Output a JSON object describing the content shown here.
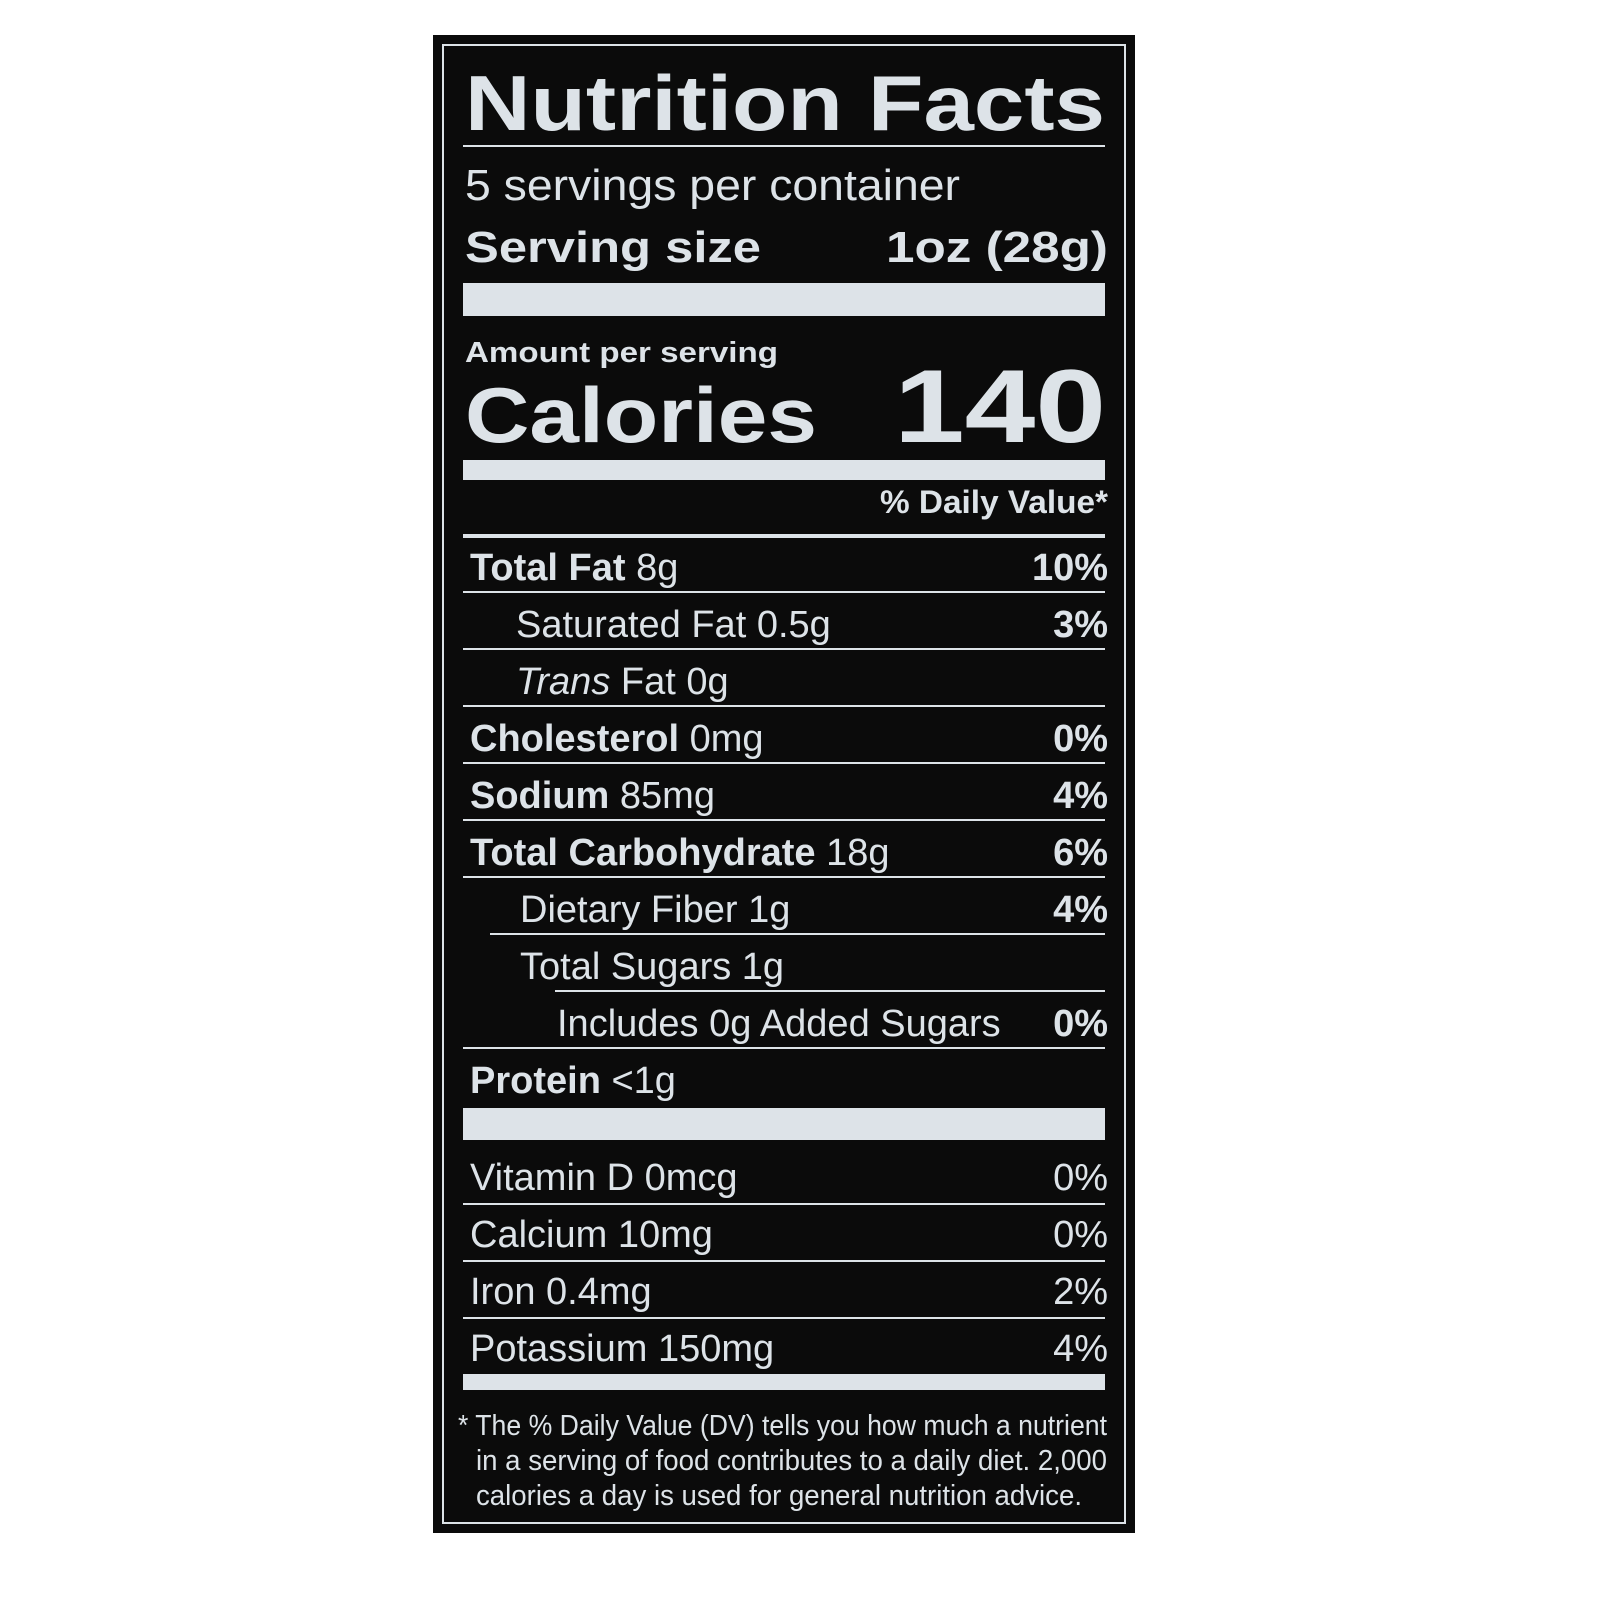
{
  "label": {
    "title": "Nutrition Facts",
    "servings": "5 servings per container",
    "serving_size": {
      "label": "Serving size",
      "value": "1oz (28g)"
    },
    "amount_per_serving": "Amount per serving",
    "calories": {
      "label": "Calories",
      "value": "140"
    },
    "dv_header": "% Daily Value*",
    "nutrients": [
      {
        "name": "Total Fat",
        "amount": "8g",
        "dv": "10%"
      },
      {
        "name": "Saturated Fat",
        "amount": "0.5g",
        "dv": "3%"
      },
      {
        "name_italic": "Trans",
        "name": "Fat",
        "amount": "0g"
      },
      {
        "name": "Cholesterol",
        "amount": "0mg",
        "dv": "0%"
      },
      {
        "name": "Sodium",
        "amount": "85mg",
        "dv": "4%"
      },
      {
        "name": "Total Carbohydrate",
        "amount": "18g",
        "dv": "6%"
      },
      {
        "name": "Dietary Fiber",
        "amount": "1g",
        "dv": "4%"
      },
      {
        "name": "Total Sugars",
        "amount": "1g"
      },
      {
        "name": "Includes 0g Added Sugars",
        "dv": "0%"
      },
      {
        "name": "Protein",
        "amount": "<1g"
      }
    ],
    "vitamins": [
      {
        "name": "Vitamin D",
        "amount": "0mcg",
        "dv": "0%"
      },
      {
        "name": "Calcium",
        "amount": "10mg",
        "dv": "0%"
      },
      {
        "name": "Iron",
        "amount": "0.4mg",
        "dv": "2%"
      },
      {
        "name": "Potassium",
        "amount": "150mg",
        "dv": "4%"
      }
    ],
    "footnote": [
      "* The % Daily Value (DV) tells you how much a nutrient",
      "in a serving of food contributes to a daily diet. 2,000",
      "calories a day is used for general nutrition advice."
    ]
  }
}
